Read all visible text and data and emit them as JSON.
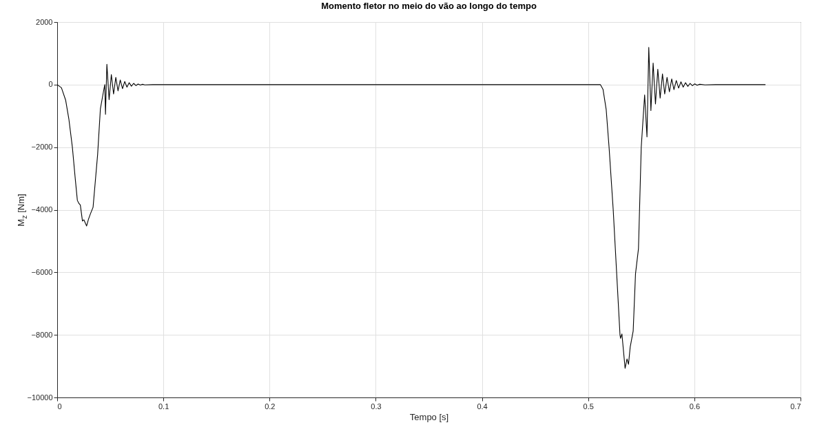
{
  "chart_data": {
    "type": "line",
    "title": "Momento fletor no meio do vão ao longo do tempo",
    "xlabel": "Tempo [s]",
    "ylabel": "M$_{z}$ [Nm]",
    "xlim": [
      0,
      0.7
    ],
    "xticks": [
      0,
      0.1,
      0.2,
      0.3,
      0.4,
      0.5,
      0.6,
      0.7
    ],
    "ylim": [
      -10000,
      2000
    ],
    "yticks": [
      -10000,
      -8000,
      -6000,
      -4000,
      -2000,
      0,
      2000
    ],
    "grid": true,
    "marker": "none",
    "line_style": "solid",
    "series": [
      {
        "color": "#000000",
        "x": [
          0,
          0.004,
          0.008,
          0.011,
          0.0143,
          0.017,
          0.019,
          0.0205,
          0.0218,
          0.0238,
          0.0251,
          0.0262,
          0.0277,
          0.0295,
          0.0312,
          0.0338,
          0.0381,
          0.0407,
          0.0435,
          0.0448,
          0.0455,
          0.0468,
          0.0489,
          0.051,
          0.0531,
          0.0552,
          0.0573,
          0.0594,
          0.0615,
          0.0636,
          0.0657,
          0.0678,
          0.0699,
          0.072,
          0.0741,
          0.0762,
          0.0783,
          0.0804,
          0.0825,
          0.09,
          0.5115,
          0.514,
          0.517,
          0.5197,
          0.5236,
          0.5268,
          0.53,
          0.5305,
          0.5318,
          0.5348,
          0.5366,
          0.538,
          0.5396,
          0.5424,
          0.5446,
          0.5474,
          0.55,
          0.5532,
          0.5554,
          0.5571,
          0.5591,
          0.5612,
          0.5634,
          0.5656,
          0.5678,
          0.57,
          0.5721,
          0.5743,
          0.5765,
          0.5787,
          0.5808,
          0.583,
          0.5852,
          0.5874,
          0.5895,
          0.5917,
          0.5939,
          0.596,
          0.5982,
          0.6004,
          0.6026,
          0.605,
          0.61,
          0.62,
          0.667
        ],
        "values": [
          0,
          -100,
          -500,
          -1100,
          -2000,
          -3000,
          -3700,
          -3800,
          -3850,
          -4360,
          -4320,
          -4400,
          -4520,
          -4300,
          -4140,
          -3920,
          -2230,
          -770,
          -240,
          0,
          -950,
          650,
          -480,
          320,
          -300,
          230,
          -200,
          150,
          -130,
          100,
          -80,
          60,
          -50,
          40,
          -30,
          20,
          -15,
          10,
          -8,
          0,
          0,
          -150,
          -800,
          -2000,
          -4000,
          -6000,
          -8000,
          -8110,
          -7970,
          -9070,
          -8770,
          -8940,
          -8390,
          -7880,
          -6050,
          -5240,
          -2000,
          -330,
          -1670,
          1190,
          -830,
          690,
          -620,
          490,
          -430,
          340,
          -300,
          230,
          -230,
          180,
          -160,
          130,
          -110,
          90,
          -80,
          60,
          -55,
          40,
          -35,
          25,
          -20,
          10,
          -8,
          0,
          0
        ]
      }
    ]
  }
}
